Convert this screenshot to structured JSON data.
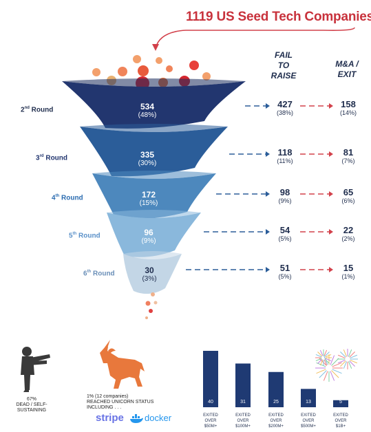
{
  "title": "1119 US Seed Tech Companies",
  "headers": {
    "fail": [
      "FAIL",
      "TO",
      "RAISE"
    ],
    "exit": [
      "M&A /",
      "EXIT"
    ]
  },
  "chart_data": [
    {
      "type": "bar",
      "subtype": "funnel",
      "categories": [
        "2nd Round",
        "3rd Round",
        "4th Round",
        "5th Round",
        "6th Round"
      ],
      "series": [
        {
          "values": [
            534,
            335,
            172,
            96,
            30
          ],
          "percent_labels": [
            "(48%)",
            "(30%)",
            "(15%)",
            "(9%)",
            "(3%)"
          ]
        },
        {
          "name": "FAIL TO RAISE",
          "values": [
            427,
            118,
            98,
            54,
            51
          ],
          "percent_labels": [
            "(38%)",
            "(11%)",
            "(9%)",
            "(5%)",
            "(5%)"
          ]
        },
        {
          "name": "M&A / EXIT",
          "values": [
            158,
            81,
            65,
            22,
            15
          ],
          "percent_labels": [
            "(14%)",
            "(7%)",
            "(6%)",
            "(2%)",
            "(1%)"
          ]
        }
      ],
      "colors": [
        "#22366f",
        "#2b5d99",
        "#4d88bd",
        "#8ab8dc",
        "#c3d6e6"
      ]
    },
    {
      "type": "bar",
      "categories": [
        "EXITED OVER $50M+",
        "EXITED OVER $100M+",
        "EXITED OVER $200M+",
        "EXITED OVER $500M+",
        "EXITED OVER $1B+"
      ],
      "values": [
        40,
        31,
        25,
        13,
        5
      ],
      "ylim": [
        0,
        40
      ],
      "color": "#1f3a73"
    }
  ],
  "rounds": [
    {
      "ord": "2",
      "sup": "nd",
      "word": "Round"
    },
    {
      "ord": "3",
      "sup": "rd",
      "word": "Round"
    },
    {
      "ord": "4",
      "sup": "th",
      "word": "Round"
    },
    {
      "ord": "5",
      "sup": "th",
      "word": "Round"
    },
    {
      "ord": "6",
      "sup": "th",
      "word": "Round"
    }
  ],
  "round_label_colors": [
    "#1f2d4d",
    "#22366f",
    "#2b6cb0",
    "#5a90c8",
    "#6a8fb8"
  ],
  "bars_labels": [
    [
      "EXITED",
      "OVER",
      "$50M+"
    ],
    [
      "EXITED",
      "OVER",
      "$100M+"
    ],
    [
      "EXITED",
      "OVER",
      "$200M+"
    ],
    [
      "EXITED",
      "OVER",
      "$500M+"
    ],
    [
      "EXITED",
      "OVER",
      "$1B+"
    ]
  ],
  "bottom": {
    "dead_pct": "67%",
    "dead_text": "DEAD / SELF-SUSTAINING",
    "unicorn_line1": "1%  (12 companies)",
    "unicorn_line2": "REACHED UNICORN STATUS",
    "unicorn_line3": "INCLUDING . . .",
    "logo_stripe": "stripe",
    "logo_docker": "docker"
  },
  "colors": {
    "title": "#c8323c",
    "arrow_red": "#d2404a",
    "arrow_blue": "#2b5d99",
    "zombie": "#3a3a3a",
    "unicorn": "#e8783c",
    "stripe": "#6772e5",
    "docker": "#2496ed"
  },
  "icons": {
    "title_arrow": "curved-arrow-icon",
    "seeds": "seed-dots-icon",
    "zombie": "zombie-icon",
    "unicorn": "unicorn-icon",
    "fireworks": "fireworks-icon"
  }
}
